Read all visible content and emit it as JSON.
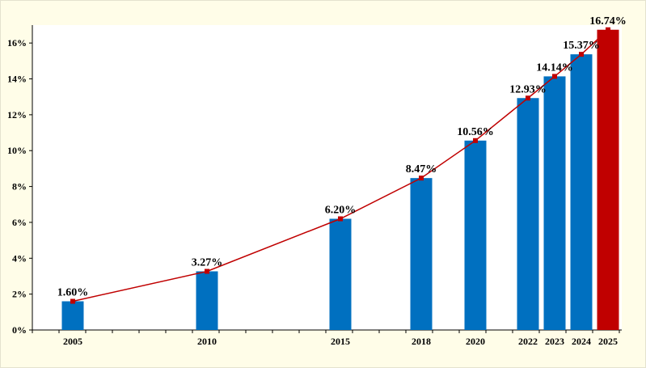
{
  "chart_data": {
    "type": "bar",
    "categories": [
      "2005",
      "2010",
      "2015",
      "2018",
      "2020",
      "2022",
      "2023",
      "2024",
      "2025"
    ],
    "values": [
      1.6,
      3.27,
      6.2,
      8.47,
      10.56,
      12.93,
      14.14,
      15.37,
      16.74
    ],
    "data_labels": [
      "1.60%",
      "3.27%",
      "6.20%",
      "8.47%",
      "10.56%",
      "12.93%",
      "14.14%",
      "15.37%",
      "16.74%"
    ],
    "y_unit": "%",
    "ylim": [
      0,
      17
    ],
    "yticks": [
      0,
      2,
      4,
      6,
      8,
      10,
      12,
      14,
      16
    ],
    "ytick_labels": [
      "0%",
      "2%",
      "4%",
      "6%",
      "8%",
      "10%",
      "12%",
      "14%",
      "16%"
    ],
    "title": "",
    "xlabel": "",
    "ylabel": "",
    "overlay_line": true,
    "grid": false,
    "legend": "none",
    "colors": {
      "bar": "#0070c0",
      "bar_highlight": "#c00000",
      "line": "#c00000",
      "marker": "#c00000",
      "background": "#fffde8"
    }
  }
}
